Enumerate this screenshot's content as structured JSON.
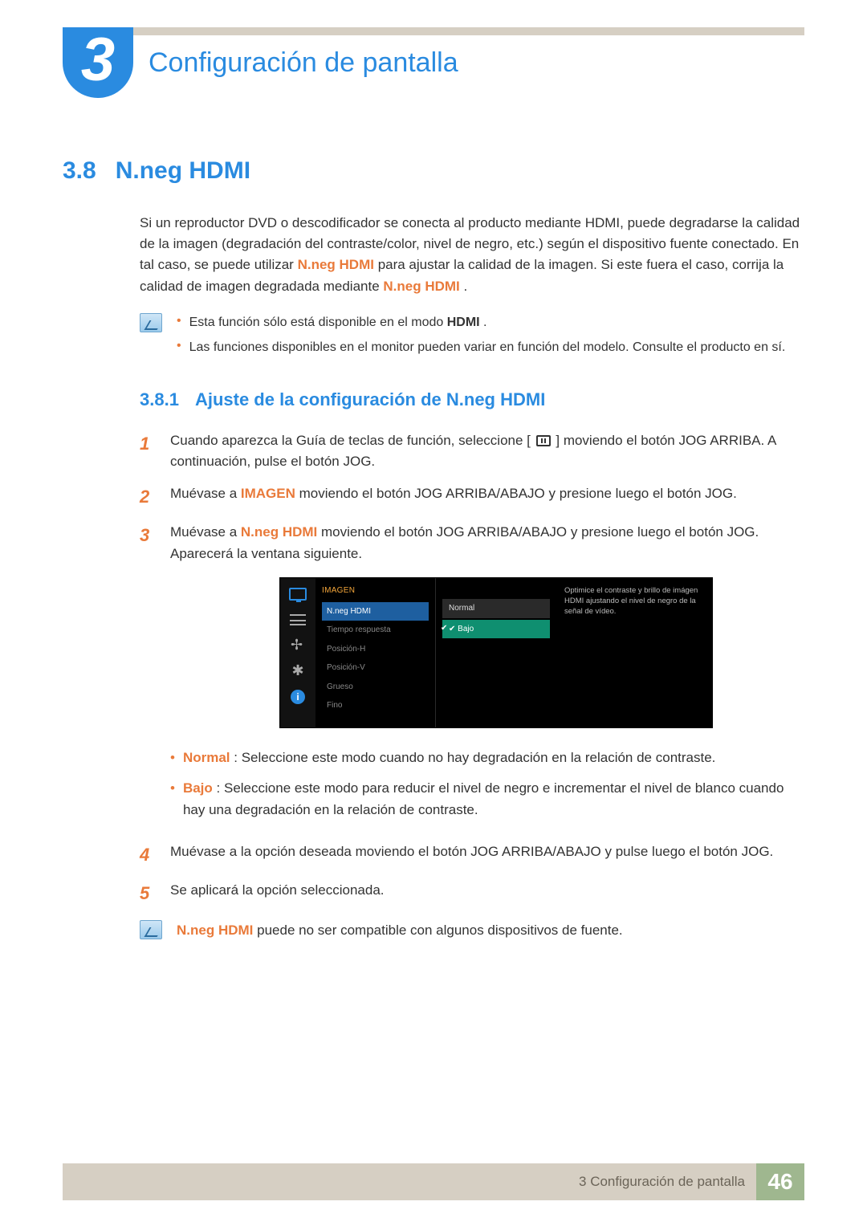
{
  "colors": {
    "accent_blue": "#2a8be0",
    "accent_orange": "#e97a3a",
    "bar_beige": "#d6cfc3",
    "foot_green": "#9fb78f",
    "text": "#333333"
  },
  "header": {
    "chapter_number": "3",
    "chapter_title": "Configuración de pantalla"
  },
  "section": {
    "number": "3.8",
    "title": "N.neg HDMI",
    "intro_pre": "Si un reproductor DVD o descodificador se conecta al producto mediante HDMI, puede degradarse la calidad de la imagen (degradación del contraste/color, nivel de negro, etc.) según el dispositivo fuente conectado. En tal caso, se puede utilizar ",
    "intro_kw1": "N.neg HDMI",
    "intro_mid": " para ajustar la calidad de la imagen. Si este fuera el caso, corrija la calidad de imagen degradada mediante ",
    "intro_kw2": "N.neg HDMI",
    "intro_post": "."
  },
  "note1": {
    "items": [
      {
        "pre": "Esta función sólo está disponible en el modo ",
        "bold": "HDMI",
        "post": "."
      },
      {
        "pre": "Las funciones disponibles en el monitor pueden variar en función del modelo. Consulte el producto en sí.",
        "bold": "",
        "post": ""
      }
    ]
  },
  "subsection": {
    "number": "3.8.1",
    "title": "Ajuste de la configuración de N.neg HDMI"
  },
  "steps": {
    "s1a": "Cuando aparezca la Guía de teclas de función, seleccione [",
    "s1b": "] moviendo el botón JOG ARRIBA. A continuación, pulse el botón JOG.",
    "s2a": "Muévase a ",
    "s2kw": "IMAGEN",
    "s2b": " moviendo el botón JOG ARRIBA/ABAJO y presione luego el botón JOG.",
    "s3a": "Muévase a ",
    "s3kw": "N.neg HDMI",
    "s3b": " moviendo el botón JOG ARRIBA/ABAJO y presione luego el botón JOG. Aparecerá la ventana siguiente.",
    "s4": "Muévase a la opción deseada moviendo el botón JOG ARRIBA/ABAJO y pulse luego el botón JOG.",
    "s5": "Se aplicará la opción seleccionada."
  },
  "osd": {
    "header": "IMAGEN",
    "menu": [
      "N.neg HDMI",
      "Tiempo respuesta",
      "Posición-H",
      "Posición-V",
      "Grueso",
      "Fino"
    ],
    "menu_selected_index": 0,
    "values": [
      "Normal",
      "Bajo"
    ],
    "value_selected_index": 1,
    "desc": "Optimice el contraste y brillo de imágen HDMI ajustando el nivel de negro de la señal de vídeo.",
    "colors": {
      "bg": "#000000",
      "header_text": "#f4a63a",
      "row_selected_bg": "#1e5fa0",
      "value_selected_bg": "#0f8f70",
      "dim_text": "#888888",
      "desc_text": "#bbbbbb"
    }
  },
  "sublist": {
    "normal_kw": "Normal",
    "normal_txt": ": Seleccione este modo cuando no hay degradación en la relación de contraste.",
    "bajo_kw": "Bajo",
    "bajo_txt": ": Seleccione este modo para reducir el nivel de negro e incrementar el nivel de blanco cuando hay una degradación en la relación de contraste."
  },
  "note2": {
    "kw": "N.neg HDMI",
    "txt": " puede no ser compatible con algunos dispositivos de fuente."
  },
  "footer": {
    "label": "3 Configuración de pantalla",
    "page": "46"
  }
}
